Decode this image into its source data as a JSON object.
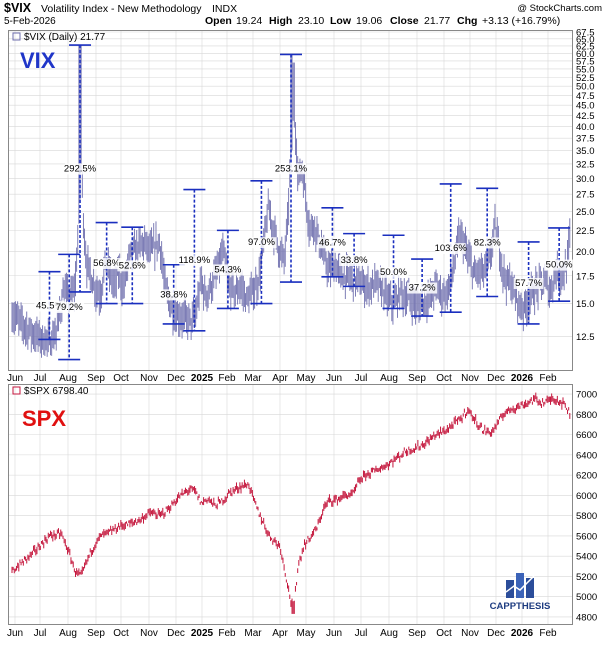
{
  "header": {
    "symbol": "$VIX",
    "name": "Volatility Index - New Methodology",
    "exchange": "INDX",
    "watermark": "@ StockCharts.com",
    "date": "5-Feb-2026",
    "open_label": "Open",
    "open": "19.24",
    "high_label": "High",
    "high": "23.10",
    "low_label": "Low",
    "low": "19.06",
    "close_label": "Close",
    "close": "21.77",
    "chg_label": "Chg",
    "chg": "+3.13 (+16.79%)"
  },
  "colors": {
    "vix_title": "#1f35c8",
    "spx_title": "#e01010",
    "vix_bars": "#6f6fae",
    "spx_bars": "#c4163c",
    "range_lines": "#1a2fbf",
    "grid": "#d8d8d8"
  },
  "chart_data": [
    {
      "type": "bar",
      "panel_title": "VIX",
      "legend": "$VIX (Daily) 21.77",
      "y_scale": "log",
      "ylim": [
        10.5,
        67.5
      ],
      "y_ticks": [
        "12.5",
        "15.0",
        "17.5",
        "20.0",
        "22.5",
        "25.0",
        "27.5",
        "30.0",
        "32.5",
        "35.0",
        "37.5",
        "40.0",
        "42.5",
        "45.0",
        "47.5",
        "50.0",
        "52.5",
        "55.0",
        "57.5",
        "60.0",
        "62.5",
        "65.0",
        "67.5"
      ],
      "x_ticks": [
        "Jun",
        "Jul",
        "Aug",
        "Sep",
        "Oct",
        "Nov",
        "Dec",
        "2025",
        "Feb",
        "Mar",
        "Apr",
        "May",
        "Jun",
        "Jul",
        "Aug",
        "Sep",
        "Oct",
        "Nov",
        "Dec",
        "2026",
        "Feb"
      ],
      "series_path": [
        [
          0,
          14.2
        ],
        [
          10,
          13.4
        ],
        [
          20,
          12.8
        ],
        [
          28,
          12.4
        ],
        [
          38,
          12.2
        ],
        [
          45,
          12.8
        ],
        [
          52,
          16.0
        ],
        [
          58,
          15.5
        ],
        [
          64,
          16.3
        ],
        [
          68,
          24.0
        ],
        [
          70,
          34.0
        ],
        [
          73,
          22.0
        ],
        [
          76,
          18.5
        ],
        [
          80,
          17.5
        ],
        [
          85,
          16.3
        ],
        [
          90,
          15.8
        ],
        [
          95,
          19.0
        ],
        [
          100,
          17.5
        ],
        [
          104,
          16.5
        ],
        [
          108,
          18.0
        ],
        [
          113,
          16.3
        ],
        [
          118,
          19.0
        ],
        [
          122,
          20.0
        ],
        [
          128,
          20.5
        ],
        [
          134,
          21.0
        ],
        [
          140,
          20.0
        ],
        [
          146,
          20.8
        ],
        [
          150,
          21.0
        ],
        [
          155,
          16.5
        ],
        [
          160,
          15.0
        ],
        [
          165,
          14.2
        ],
        [
          170,
          14.0
        ],
        [
          176,
          13.8
        ],
        [
          182,
          13.6
        ],
        [
          186,
          14.0
        ],
        [
          192,
          17.0
        ],
        [
          196,
          15.6
        ],
        [
          202,
          16.5
        ],
        [
          208,
          18.0
        ],
        [
          214,
          20.0
        ],
        [
          220,
          16.5
        ],
        [
          226,
          16.0
        ],
        [
          232,
          16.5
        ],
        [
          238,
          15.3
        ],
        [
          244,
          16.0
        ],
        [
          250,
          17.0
        ],
        [
          256,
          21.5
        ],
        [
          260,
          25.5
        ],
        [
          264,
          23.0
        ],
        [
          270,
          20.5
        ],
        [
          276,
          19.0
        ],
        [
          280,
          24.0
        ],
        [
          283,
          35.0
        ],
        [
          286,
          45.0
        ],
        [
          290,
          30.0
        ],
        [
          294,
          32.0
        ],
        [
          298,
          27.0
        ],
        [
          302,
          22.5
        ],
        [
          306,
          23.5
        ],
        [
          312,
          21.0
        ],
        [
          318,
          19.0
        ],
        [
          322,
          18.0
        ],
        [
          328,
          18.5
        ],
        [
          334,
          17.5
        ],
        [
          340,
          17.5
        ],
        [
          346,
          17.2
        ],
        [
          352,
          17.0
        ],
        [
          358,
          16.5
        ],
        [
          364,
          16.5
        ],
        [
          370,
          16.8
        ],
        [
          376,
          16.2
        ],
        [
          382,
          15.3
        ],
        [
          388,
          15.0
        ],
        [
          394,
          16.0
        ],
        [
          400,
          15.5
        ],
        [
          406,
          15.3
        ],
        [
          412,
          14.8
        ],
        [
          418,
          15.3
        ],
        [
          424,
          15.5
        ],
        [
          430,
          16.5
        ],
        [
          436,
          15.8
        ],
        [
          442,
          16.0
        ],
        [
          446,
          17.5
        ],
        [
          450,
          19.5
        ],
        [
          454,
          22.0
        ],
        [
          458,
          21.0
        ],
        [
          462,
          19.5
        ],
        [
          466,
          18.5
        ],
        [
          470,
          17.5
        ],
        [
          474,
          18.0
        ],
        [
          478,
          17.8
        ],
        [
          482,
          18.5
        ],
        [
          486,
          20.0
        ],
        [
          490,
          23.0
        ],
        [
          494,
          20.5
        ],
        [
          498,
          18.0
        ],
        [
          502,
          17.0
        ],
        [
          506,
          16.8
        ],
        [
          510,
          15.8
        ],
        [
          514,
          15.0
        ],
        [
          518,
          14.6
        ],
        [
          522,
          15.0
        ],
        [
          528,
          16.0
        ],
        [
          534,
          16.5
        ],
        [
          540,
          17.0
        ],
        [
          546,
          16.0
        ],
        [
          552,
          18.0
        ],
        [
          556,
          17.5
        ],
        [
          560,
          18.0
        ],
        [
          563,
          18.4
        ],
        [
          566,
          21.8
        ]
      ],
      "moves": [
        {
          "label": "45.5%",
          "low": 12.3,
          "high": 17.9,
          "t": 38
        },
        {
          "label": "79.2%",
          "low": 11.0,
          "high": 19.7,
          "t": 58
        },
        {
          "label": "292.5%",
          "low": 16.0,
          "high": 62.8,
          "t": 69
        },
        {
          "label": "56.8%",
          "low": 15.0,
          "high": 23.5,
          "t": 96
        },
        {
          "label": "52.6%",
          "low": 15.0,
          "high": 22.9,
          "t": 122
        },
        {
          "label": "38.8%",
          "low": 13.4,
          "high": 18.6,
          "t": 164
        },
        {
          "label": "118.9%",
          "low": 12.9,
          "high": 28.2,
          "t": 185
        },
        {
          "label": "54.3%",
          "low": 14.6,
          "high": 22.5,
          "t": 219
        },
        {
          "label": "97.0%",
          "low": 15.0,
          "high": 29.6,
          "t": 253
        },
        {
          "label": "253.1%",
          "low": 16.9,
          "high": 59.6,
          "t": 283
        },
        {
          "label": "46.7%",
          "low": 17.4,
          "high": 25.5,
          "t": 325
        },
        {
          "label": "33.8%",
          "low": 16.5,
          "high": 22.1,
          "t": 347
        },
        {
          "label": "50.0%",
          "low": 14.6,
          "high": 21.9,
          "t": 387
        },
        {
          "label": "37.2%",
          "low": 14.0,
          "high": 19.2,
          "t": 416
        },
        {
          "label": "103.6%",
          "low": 14.3,
          "high": 29.1,
          "t": 445
        },
        {
          "label": "82.3%",
          "low": 15.6,
          "high": 28.4,
          "t": 482
        },
        {
          "label": "57.7%",
          "low": 13.4,
          "high": 21.1,
          "t": 524
        },
        {
          "label": "50.0%",
          "low": 15.2,
          "high": 22.8,
          "t": 555
        }
      ]
    },
    {
      "type": "bar",
      "panel_title": "SPX",
      "legend": "$SPX 6798.40",
      "ylim": [
        4750,
        7080
      ],
      "y_ticks": [
        "4800",
        "5000",
        "5200",
        "5400",
        "5600",
        "5800",
        "6000",
        "6200",
        "6400",
        "6600",
        "6800",
        "7000"
      ],
      "x_ticks": [
        "Jun",
        "Jul",
        "Aug",
        "Sep",
        "Oct",
        "Nov",
        "Dec",
        "2025",
        "Feb",
        "Mar",
        "Apr",
        "May",
        "Jun",
        "Jul",
        "Aug",
        "Sep",
        "Oct",
        "Nov",
        "Dec",
        "2026",
        "Feb"
      ],
      "series_path": [
        [
          0,
          5250
        ],
        [
          20,
          5420
        ],
        [
          38,
          5600
        ],
        [
          50,
          5620
        ],
        [
          58,
          5430
        ],
        [
          64,
          5250
        ],
        [
          70,
          5200
        ],
        [
          80,
          5450
        ],
        [
          90,
          5600
        ],
        [
          100,
          5640
        ],
        [
          110,
          5700
        ],
        [
          120,
          5720
        ],
        [
          130,
          5760
        ],
        [
          140,
          5830
        ],
        [
          150,
          5800
        ],
        [
          160,
          5880
        ],
        [
          170,
          5990
        ],
        [
          180,
          6060
        ],
        [
          186,
          6040
        ],
        [
          192,
          5920
        ],
        [
          198,
          5970
        ],
        [
          206,
          5900
        ],
        [
          214,
          5950
        ],
        [
          220,
          6020
        ],
        [
          230,
          6080
        ],
        [
          240,
          6110
        ],
        [
          248,
          5880
        ],
        [
          254,
          5750
        ],
        [
          260,
          5620
        ],
        [
          266,
          5550
        ],
        [
          272,
          5500
        ],
        [
          278,
          5200
        ],
        [
          283,
          4950
        ],
        [
          286,
          4890
        ],
        [
          290,
          5300
        ],
        [
          296,
          5500
        ],
        [
          302,
          5580
        ],
        [
          310,
          5690
        ],
        [
          316,
          5870
        ],
        [
          322,
          5950
        ],
        [
          330,
          5960
        ],
        [
          338,
          6000
        ],
        [
          346,
          6010
        ],
        [
          352,
          6140
        ],
        [
          360,
          6210
        ],
        [
          370,
          6250
        ],
        [
          380,
          6300
        ],
        [
          392,
          6380
        ],
        [
          400,
          6440
        ],
        [
          410,
          6470
        ],
        [
          420,
          6520
        ],
        [
          430,
          6600
        ],
        [
          440,
          6640
        ],
        [
          450,
          6720
        ],
        [
          456,
          6760
        ],
        [
          462,
          6850
        ],
        [
          470,
          6740
        ],
        [
          478,
          6640
        ],
        [
          486,
          6620
        ],
        [
          492,
          6700
        ],
        [
          500,
          6820
        ],
        [
          510,
          6870
        ],
        [
          520,
          6900
        ],
        [
          530,
          6950
        ],
        [
          540,
          6910
        ],
        [
          548,
          6960
        ],
        [
          556,
          6930
        ],
        [
          562,
          6880
        ],
        [
          566,
          6798
        ]
      ],
      "logo_text": "CAPPTHESIS"
    }
  ]
}
